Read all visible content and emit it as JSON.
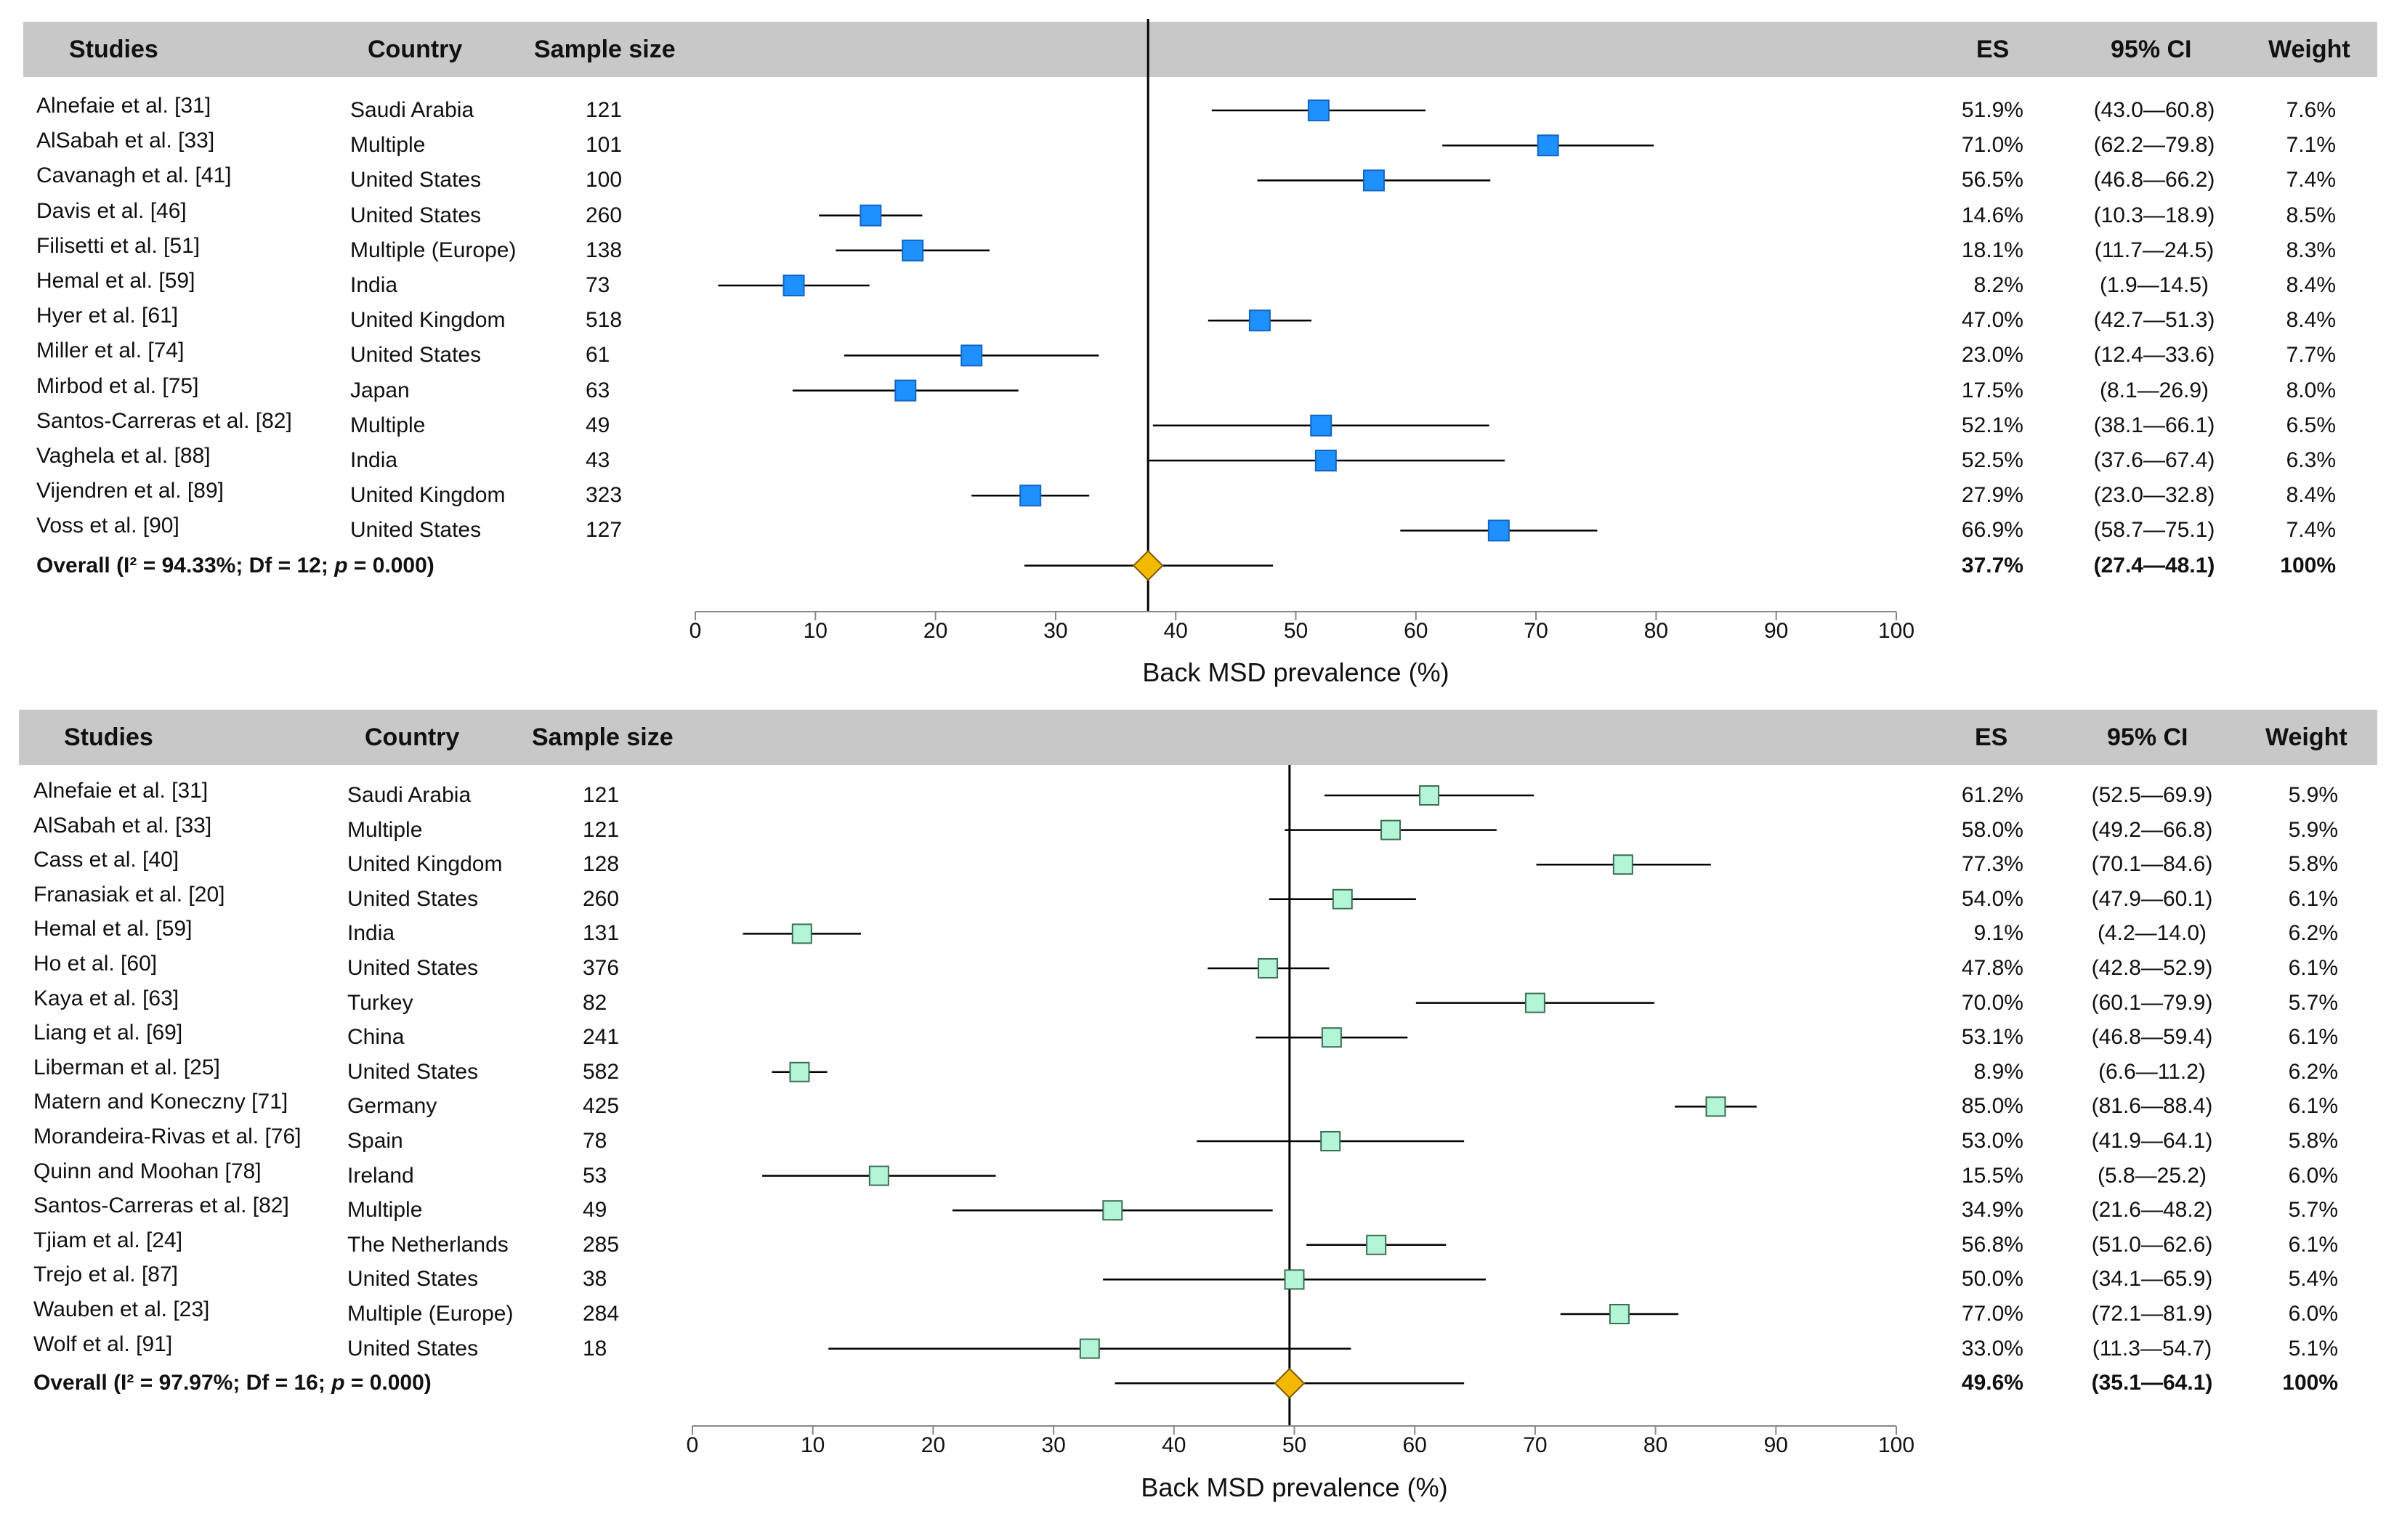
{
  "headers": {
    "studies": "Studies",
    "country": "Country",
    "sample_size": "Sample size",
    "es": "ES",
    "ci": "95% CI",
    "weight": "Weight"
  },
  "colors": {
    "marker_top": "#1e90ff",
    "marker_bottom": "#b3f5d6",
    "overall": "#f5b800",
    "header_bg": "#c8c8c8"
  },
  "chart_data": [
    {
      "type": "forest",
      "xlabel": "Back MSD prevalence (%)",
      "xlim": [
        0,
        100
      ],
      "ticks": [
        0,
        10,
        20,
        30,
        40,
        50,
        60,
        70,
        80,
        90,
        100
      ],
      "marker_style": "filled-blue-square",
      "rows": [
        {
          "study": "Alnefaie et al. [31]",
          "country": "Saudi Arabia",
          "n": "121",
          "es": 51.9,
          "lo": 43.0,
          "hi": 60.8,
          "es_text": "51.9%",
          "ci_text": "(43.0—60.8)",
          "weight": "7.6%"
        },
        {
          "study": "AlSabah et al. [33]",
          "country": "Multiple",
          "n": "101",
          "es": 71.0,
          "lo": 62.2,
          "hi": 79.8,
          "es_text": "71.0%",
          "ci_text": "(62.2—79.8)",
          "weight": "7.1%"
        },
        {
          "study": "Cavanagh et al. [41]",
          "country": "United States",
          "n": "100",
          "es": 56.5,
          "lo": 46.8,
          "hi": 66.2,
          "es_text": "56.5%",
          "ci_text": "(46.8—66.2)",
          "weight": "7.4%"
        },
        {
          "study": "Davis et al. [46]",
          "country": "United States",
          "n": "260",
          "es": 14.6,
          "lo": 10.3,
          "hi": 18.9,
          "es_text": "14.6%",
          "ci_text": "(10.3—18.9)",
          "weight": "8.5%"
        },
        {
          "study": "Filisetti et al. [51]",
          "country": "Multiple (Europe)",
          "n": "138",
          "es": 18.1,
          "lo": 11.7,
          "hi": 24.5,
          "es_text": "18.1%",
          "ci_text": "(11.7—24.5)",
          "weight": "8.3%"
        },
        {
          "study": "Hemal et al. [59]",
          "country": "India",
          "n": "73",
          "es": 8.2,
          "lo": 1.9,
          "hi": 14.5,
          "es_text": "8.2%",
          "ci_text": "(1.9—14.5)",
          "weight": "8.4%"
        },
        {
          "study": "Hyer et al. [61]",
          "country": "United Kingdom",
          "n": "518",
          "es": 47.0,
          "lo": 42.7,
          "hi": 51.3,
          "es_text": "47.0%",
          "ci_text": "(42.7—51.3)",
          "weight": "8.4%"
        },
        {
          "study": "Miller et al. [74]",
          "country": "United States",
          "n": "61",
          "es": 23.0,
          "lo": 12.4,
          "hi": 33.6,
          "es_text": "23.0%",
          "ci_text": "(12.4—33.6)",
          "weight": "7.7%"
        },
        {
          "study": "Mirbod et al. [75]",
          "country": "Japan",
          "n": "63",
          "es": 17.5,
          "lo": 8.1,
          "hi": 26.9,
          "es_text": "17.5%",
          "ci_text": "(8.1—26.9)",
          "weight": "8.0%"
        },
        {
          "study": "Santos-Carreras et al. [82]",
          "country": "Multiple",
          "n": "49",
          "es": 52.1,
          "lo": 38.1,
          "hi": 66.1,
          "es_text": "52.1%",
          "ci_text": "(38.1—66.1)",
          "weight": "6.5%"
        },
        {
          "study": "Vaghela et al. [88]",
          "country": "India",
          "n": "43",
          "es": 52.5,
          "lo": 37.6,
          "hi": 67.4,
          "es_text": "52.5%",
          "ci_text": "(37.6—67.4)",
          "weight": "6.3%"
        },
        {
          "study": "Vijendren et al. [89]",
          "country": "United Kingdom",
          "n": "323",
          "es": 27.9,
          "lo": 23.0,
          "hi": 32.8,
          "es_text": "27.9%",
          "ci_text": "(23.0—32.8)",
          "weight": "8.4%"
        },
        {
          "study": "Voss et al. [90]",
          "country": "United States",
          "n": "127",
          "es": 66.9,
          "lo": 58.7,
          "hi": 75.1,
          "es_text": "66.9%",
          "ci_text": "(58.7—75.1)",
          "weight": "7.4%"
        }
      ],
      "overall": {
        "label": "Overall (I² = 94.33%; Df = 12; p = 0.000)",
        "label_pre": "Overall (I² = 94.33%; Df = 12; ",
        "label_p": "p",
        "label_post": " = 0.000)",
        "es": 37.7,
        "lo": 27.4,
        "hi": 48.1,
        "es_text": "37.7%",
        "ci_text": "(27.4—48.1)",
        "weight": "100%"
      }
    },
    {
      "type": "forest",
      "xlabel": "Back MSD prevalence (%)",
      "xlim": [
        0,
        100
      ],
      "ticks": [
        0,
        10,
        20,
        30,
        40,
        50,
        60,
        70,
        80,
        90,
        100
      ],
      "marker_style": "light-green-square",
      "rows": [
        {
          "study": "Alnefaie et al. [31]",
          "country": "Saudi Arabia",
          "n": "121",
          "es": 61.2,
          "lo": 52.5,
          "hi": 69.9,
          "es_text": "61.2%",
          "ci_text": "(52.5—69.9)",
          "weight": "5.9%"
        },
        {
          "study": "AlSabah et al. [33]",
          "country": "Multiple",
          "n": "121",
          "es": 58.0,
          "lo": 49.2,
          "hi": 66.8,
          "es_text": "58.0%",
          "ci_text": "(49.2—66.8)",
          "weight": "5.9%"
        },
        {
          "study": "Cass et al. [40]",
          "country": "United Kingdom",
          "n": "128",
          "es": 77.3,
          "lo": 70.1,
          "hi": 84.6,
          "es_text": "77.3%",
          "ci_text": "(70.1—84.6)",
          "weight": "5.8%"
        },
        {
          "study": "Franasiak et al. [20]",
          "country": "United States",
          "n": "260",
          "es": 54.0,
          "lo": 47.9,
          "hi": 60.1,
          "es_text": "54.0%",
          "ci_text": "(47.9—60.1)",
          "weight": "6.1%"
        },
        {
          "study": "Hemal et al. [59]",
          "country": "India",
          "n": "131",
          "es": 9.1,
          "lo": 4.2,
          "hi": 14.0,
          "es_text": "9.1%",
          "ci_text": "(4.2—14.0)",
          "weight": "6.2%"
        },
        {
          "study": "Ho et al. [60]",
          "country": "United States",
          "n": "376",
          "es": 47.8,
          "lo": 42.8,
          "hi": 52.9,
          "es_text": "47.8%",
          "ci_text": "(42.8—52.9)",
          "weight": "6.1%"
        },
        {
          "study": "Kaya et al. [63]",
          "country": "Turkey",
          "n": "82",
          "es": 70.0,
          "lo": 60.1,
          "hi": 79.9,
          "es_text": "70.0%",
          "ci_text": "(60.1—79.9)",
          "weight": "5.7%"
        },
        {
          "study": "Liang et al. [69]",
          "country": "China",
          "n": "241",
          "es": 53.1,
          "lo": 46.8,
          "hi": 59.4,
          "es_text": "53.1%",
          "ci_text": "(46.8—59.4)",
          "weight": "6.1%"
        },
        {
          "study": "Liberman et al. [25]",
          "country": "United States",
          "n": "582",
          "es": 8.9,
          "lo": 6.6,
          "hi": 11.2,
          "es_text": "8.9%",
          "ci_text": "(6.6—11.2)",
          "weight": "6.2%"
        },
        {
          "study": "Matern and Koneczny [71]",
          "country": "Germany",
          "n": "425",
          "es": 85.0,
          "lo": 81.6,
          "hi": 88.4,
          "es_text": "85.0%",
          "ci_text": "(81.6—88.4)",
          "weight": "6.1%"
        },
        {
          "study": "Morandeira-Rivas et al. [76]",
          "country": "Spain",
          "n": "78",
          "es": 53.0,
          "lo": 41.9,
          "hi": 64.1,
          "es_text": "53.0%",
          "ci_text": "(41.9—64.1)",
          "weight": "5.8%"
        },
        {
          "study": "Quinn and Moohan [78]",
          "country": "Ireland",
          "n": "53",
          "es": 15.5,
          "lo": 5.8,
          "hi": 25.2,
          "es_text": "15.5%",
          "ci_text": "(5.8—25.2)",
          "weight": "6.0%"
        },
        {
          "study": "Santos-Carreras et al. [82]",
          "country": "Multiple",
          "n": "49",
          "es": 34.9,
          "lo": 21.6,
          "hi": 48.2,
          "es_text": "34.9%",
          "ci_text": "(21.6—48.2)",
          "weight": "5.7%"
        },
        {
          "study": "Tjiam et al. [24]",
          "country": "The Netherlands",
          "n": "285",
          "es": 56.8,
          "lo": 51.0,
          "hi": 62.6,
          "es_text": "56.8%",
          "ci_text": "(51.0—62.6)",
          "weight": "6.1%"
        },
        {
          "study": "Trejo et al. [87]",
          "country": "United States",
          "n": "38",
          "es": 50.0,
          "lo": 34.1,
          "hi": 65.9,
          "es_text": "50.0%",
          "ci_text": "(34.1—65.9)",
          "weight": "5.4%"
        },
        {
          "study": "Wauben et al. [23]",
          "country": "Multiple (Europe)",
          "n": "284",
          "es": 77.0,
          "lo": 72.1,
          "hi": 81.9,
          "es_text": "77.0%",
          "ci_text": "(72.1—81.9)",
          "weight": "6.0%"
        },
        {
          "study": "Wolf et al. [91]",
          "country": "United States",
          "n": "18",
          "es": 33.0,
          "lo": 11.3,
          "hi": 54.7,
          "es_text": "33.0%",
          "ci_text": "(11.3—54.7)",
          "weight": "5.1%"
        }
      ],
      "overall": {
        "label": "Overall (I² = 97.97%; Df = 16; p = 0.000)",
        "label_pre": "Overall (I² = 97.97%; Df = 16; ",
        "label_p": "p",
        "label_post": " = 0.000)",
        "es": 49.6,
        "lo": 35.1,
        "hi": 64.1,
        "es_text": "49.6%",
        "ci_text": "(35.1—64.1)",
        "weight": "100%"
      }
    }
  ]
}
